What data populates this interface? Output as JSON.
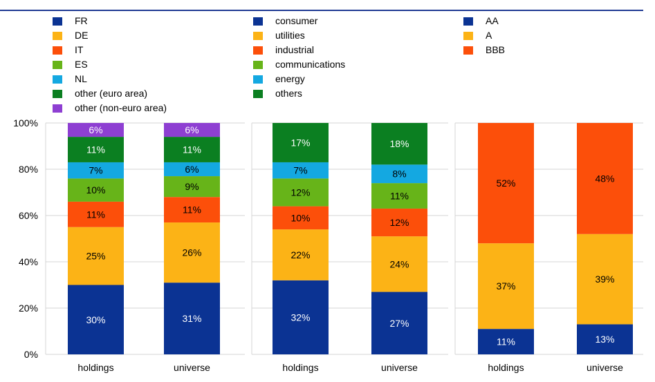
{
  "colors": {
    "navy": "#0b3393",
    "amber": "#fcb316",
    "orange": "#fc4f0a",
    "green": "#67b419",
    "cyan": "#14a8e1",
    "dark_green": "#0b7f21",
    "purple": "#8e3fd2",
    "rule": "#1f3a93"
  },
  "legends": [
    {
      "items": [
        {
          "label": "FR",
          "color": "#0b3393"
        },
        {
          "label": "DE",
          "color": "#fcb316"
        },
        {
          "label": "IT",
          "color": "#fc4f0a"
        },
        {
          "label": "ES",
          "color": "#67b419"
        },
        {
          "label": "NL",
          "color": "#14a8e1"
        },
        {
          "label": "other (euro area)",
          "color": "#0b7f21"
        },
        {
          "label": "other (non-euro area)",
          "color": "#8e3fd2"
        }
      ]
    },
    {
      "items": [
        {
          "label": "consumer",
          "color": "#0b3393"
        },
        {
          "label": "utilities",
          "color": "#fcb316"
        },
        {
          "label": "industrial",
          "color": "#fc4f0a"
        },
        {
          "label": "communications",
          "color": "#67b419"
        },
        {
          "label": "energy",
          "color": "#14a8e1"
        },
        {
          "label": "others",
          "color": "#0b7f21"
        }
      ]
    },
    {
      "items": [
        {
          "label": "AA",
          "color": "#0b3393"
        },
        {
          "label": "A",
          "color": "#fcb316"
        },
        {
          "label": "BBB",
          "color": "#fc4f0a"
        }
      ]
    }
  ],
  "chart_data": [
    {
      "type": "bar",
      "stacked": true,
      "normalized_percent": true,
      "categories": [
        "holdings",
        "universe"
      ],
      "y_ticks": [
        "0%",
        "20%",
        "40%",
        "60%",
        "80%",
        "100%"
      ],
      "ylim": [
        0,
        100
      ],
      "grid": true,
      "series": [
        {
          "name": "FR",
          "color": "#0b3393",
          "values": [
            30,
            31
          ],
          "labels": [
            "30%",
            "31%"
          ]
        },
        {
          "name": "DE",
          "color": "#fcb316",
          "values": [
            25,
            26
          ],
          "labels": [
            "25%",
            "26%"
          ]
        },
        {
          "name": "IT",
          "color": "#fc4f0a",
          "values": [
            11,
            11
          ],
          "labels": [
            "11%",
            "11%"
          ]
        },
        {
          "name": "ES",
          "color": "#67b419",
          "values": [
            10,
            9
          ],
          "labels": [
            "10%",
            "9%"
          ]
        },
        {
          "name": "NL",
          "color": "#14a8e1",
          "values": [
            7,
            6
          ],
          "labels": [
            "7%",
            "6%"
          ]
        },
        {
          "name": "other (euro area)",
          "color": "#0b7f21",
          "values": [
            11,
            11
          ],
          "labels": [
            "11%",
            "11%"
          ]
        },
        {
          "name": "other (non-euro area)",
          "color": "#8e3fd2",
          "values": [
            6,
            6
          ],
          "labels": [
            "6%",
            "6%"
          ]
        }
      ]
    },
    {
      "type": "bar",
      "stacked": true,
      "normalized_percent": true,
      "categories": [
        "holdings",
        "universe"
      ],
      "ylim": [
        0,
        100
      ],
      "grid": true,
      "series": [
        {
          "name": "consumer",
          "color": "#0b3393",
          "values": [
            32,
            27
          ],
          "labels": [
            "32%",
            "27%"
          ]
        },
        {
          "name": "utilities",
          "color": "#fcb316",
          "values": [
            22,
            24
          ],
          "labels": [
            "22%",
            "24%"
          ]
        },
        {
          "name": "industrial",
          "color": "#fc4f0a",
          "values": [
            10,
            12
          ],
          "labels": [
            "10%",
            "12%"
          ]
        },
        {
          "name": "communications",
          "color": "#67b419",
          "values": [
            12,
            11
          ],
          "labels": [
            "12%",
            "11%"
          ]
        },
        {
          "name": "energy",
          "color": "#14a8e1",
          "values": [
            7,
            8
          ],
          "labels": [
            "7%",
            "8%"
          ]
        },
        {
          "name": "others",
          "color": "#0b7f21",
          "values": [
            17,
            18
          ],
          "labels": [
            "17%",
            "18%"
          ]
        }
      ]
    },
    {
      "type": "bar",
      "stacked": true,
      "normalized_percent": true,
      "categories": [
        "holdings",
        "universe"
      ],
      "ylim": [
        0,
        100
      ],
      "grid": true,
      "series": [
        {
          "name": "AA",
          "color": "#0b3393",
          "values": [
            11,
            13
          ],
          "labels": [
            "11%",
            "13%"
          ]
        },
        {
          "name": "A",
          "color": "#fcb316",
          "values": [
            37,
            39
          ],
          "labels": [
            "37%",
            "39%"
          ]
        },
        {
          "name": "BBB",
          "color": "#fc4f0a",
          "values": [
            52,
            48
          ],
          "labels": [
            "52%",
            "48%"
          ]
        }
      ]
    }
  ]
}
